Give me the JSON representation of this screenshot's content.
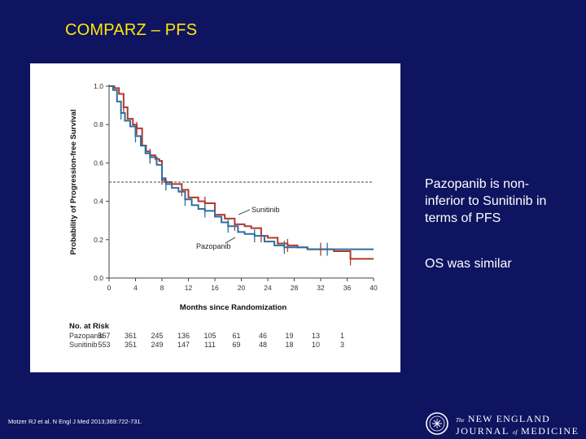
{
  "slide": {
    "title": "COMPARZ – PFS",
    "note_noninferior": "Pazopanib is non-inferior to Sunitinib in terms of PFS",
    "note_os": "OS was similar",
    "citation": "Motzer RJ et al. N Engl J Med 2013;369:722-731.",
    "journal": {
      "the": "The",
      "line1": "NEW ENGLAND",
      "line2_a": "JOURNAL",
      "line2_of": "of",
      "line2_b": "MEDICINE"
    }
  },
  "colors": {
    "background": "#0e1460",
    "title": "#ffe800",
    "sunitinib": "#b03a2e",
    "pazopanib": "#2d6f9e"
  },
  "chart_data": {
    "type": "line",
    "title": "",
    "xlabel": "Months since Randomization",
    "ylabel": "Probability of Progression-free Survival",
    "xlim": [
      0,
      40
    ],
    "ylim": [
      0,
      1.0
    ],
    "xticks": [
      0,
      4,
      8,
      12,
      16,
      20,
      24,
      28,
      32,
      36,
      40
    ],
    "yticks": [
      "0.0",
      "0.2",
      "0.4",
      "0.6",
      "0.8",
      "1.0"
    ],
    "reference_line": 0.5,
    "series": [
      {
        "name": "Sunitinib",
        "step_x": [
          0,
          0.8,
          1.5,
          2.2,
          2.8,
          3.6,
          4.2,
          5.0,
          5.6,
          6.2,
          7.0,
          7.6,
          8.0,
          8.5,
          9.5,
          11.0,
          12.0,
          13.5,
          14.5,
          16.0,
          17.5,
          19.0,
          20.5,
          21.5,
          23.0,
          24.0,
          25.5,
          27.0,
          28.5,
          30.0,
          32.0,
          34.0,
          35.5,
          36.5,
          40
        ],
        "step_y": [
          1.0,
          0.99,
          0.96,
          0.89,
          0.83,
          0.8,
          0.78,
          0.69,
          0.66,
          0.64,
          0.62,
          0.61,
          0.52,
          0.5,
          0.49,
          0.46,
          0.42,
          0.4,
          0.39,
          0.33,
          0.31,
          0.28,
          0.27,
          0.26,
          0.22,
          0.21,
          0.18,
          0.17,
          0.16,
          0.15,
          0.15,
          0.14,
          0.14,
          0.1,
          0.1
        ]
      },
      {
        "name": "Pazopanib",
        "step_x": [
          0,
          0.6,
          1.2,
          1.8,
          2.4,
          3.2,
          4.0,
          4.8,
          5.5,
          6.2,
          7.2,
          8.0,
          8.6,
          9.5,
          10.5,
          11.5,
          12.5,
          13.5,
          14.5,
          16.0,
          17.0,
          18.0,
          19.5,
          20.5,
          22.0,
          23.5,
          25.0,
          26.5,
          28.5,
          30.0,
          33.0,
          35.5,
          40
        ],
        "step_y": [
          1.0,
          0.98,
          0.92,
          0.86,
          0.82,
          0.79,
          0.74,
          0.69,
          0.65,
          0.63,
          0.59,
          0.51,
          0.49,
          0.47,
          0.45,
          0.41,
          0.38,
          0.36,
          0.35,
          0.32,
          0.29,
          0.27,
          0.24,
          0.23,
          0.22,
          0.19,
          0.17,
          0.16,
          0.16,
          0.15,
          0.15,
          0.15,
          0.15
        ]
      }
    ],
    "annotations": [
      "Sunitinib",
      "Pazopanib"
    ],
    "risk_table": {
      "header": "No. at Risk",
      "rows": [
        {
          "label": "Pazopanib",
          "values": [
            "557",
            "361",
            "245",
            "136",
            "105",
            "61",
            "46",
            "19",
            "13",
            "1"
          ]
        },
        {
          "label": "Sunitinib",
          "values": [
            "553",
            "351",
            "249",
            "147",
            "111",
            "69",
            "48",
            "18",
            "10",
            "3"
          ]
        }
      ]
    }
  }
}
